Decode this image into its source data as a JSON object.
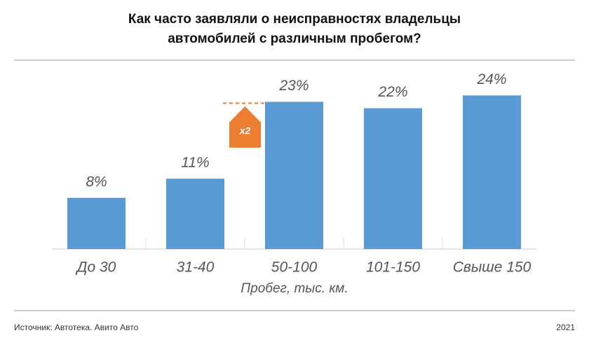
{
  "chart_data": {
    "type": "bar",
    "title": [
      "Как часто заявляли о неисправностях владельцы",
      "автомобилей с различным пробегом?"
    ],
    "categories": [
      "До 30",
      "31-40",
      "50-100",
      "101-150",
      "Свыше 150"
    ],
    "values": [
      8,
      11,
      23,
      22,
      24
    ],
    "value_labels": [
      "8%",
      "11%",
      "23%",
      "22%",
      "24%"
    ],
    "color": "#5b9bd5",
    "x_label": "Пробег, тыс. км.",
    "annotation": {
      "text": "x2",
      "color": "#ed7d31"
    },
    "source": "Источник: Автотека. Авито Авто",
    "year": "2021"
  }
}
